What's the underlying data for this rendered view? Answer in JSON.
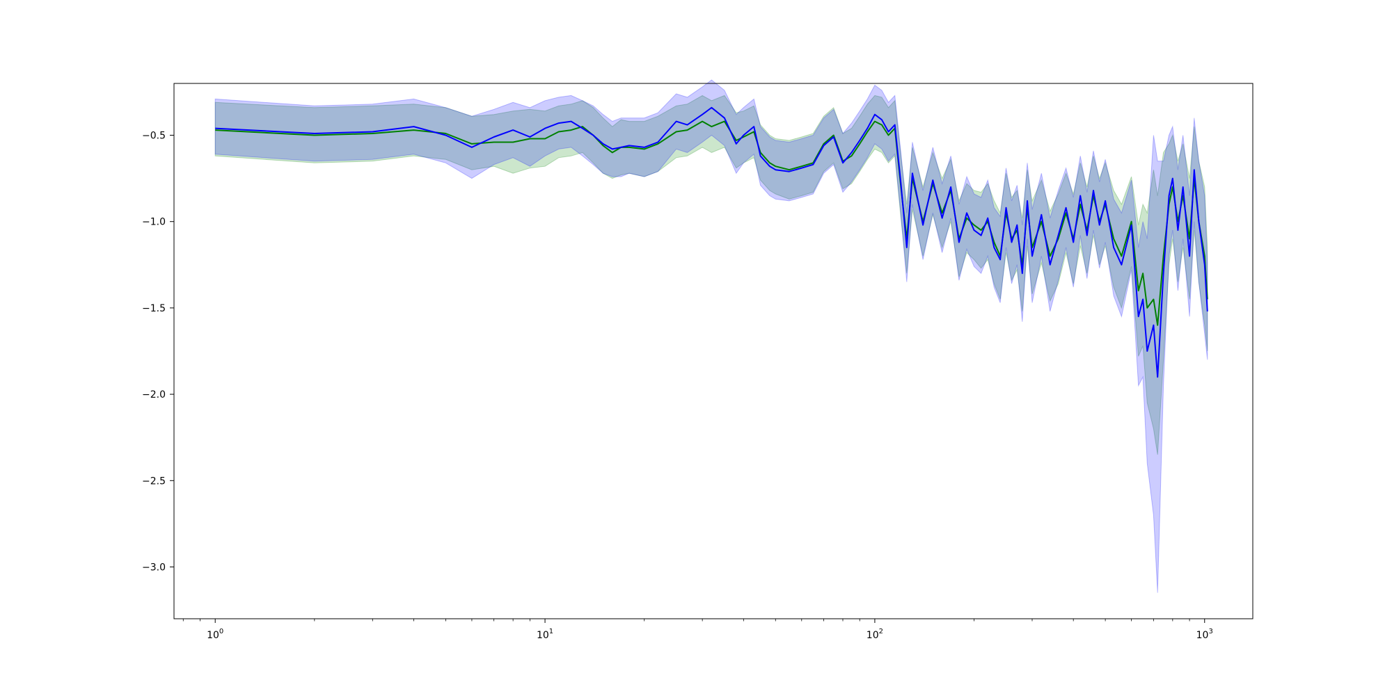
{
  "chart_data": {
    "type": "line",
    "title": "",
    "xlabel": "",
    "ylabel": "",
    "x_scale": "log",
    "xlim": [
      0.75,
      1400
    ],
    "ylim": [
      -3.3,
      -0.2
    ],
    "grid": false,
    "legend": "none",
    "x_ticks": [
      {
        "value": 1,
        "base": "10",
        "exp": "0"
      },
      {
        "value": 10,
        "base": "10",
        "exp": "1"
      },
      {
        "value": 100,
        "base": "10",
        "exp": "2"
      },
      {
        "value": 1000,
        "base": "10",
        "exp": "3"
      }
    ],
    "y_ticks": [
      {
        "value": -0.5,
        "label": "−0.5"
      },
      {
        "value": -1.0,
        "label": "−1.0"
      },
      {
        "value": -1.5,
        "label": "−1.5"
      },
      {
        "value": -2.0,
        "label": "−2.0"
      },
      {
        "value": -2.5,
        "label": "−2.5"
      },
      {
        "value": -3.0,
        "label": "−3.0"
      }
    ],
    "series": [
      {
        "color": "#008000",
        "band_color": "#008000",
        "x": [
          1,
          2,
          3,
          4,
          5,
          6,
          7,
          8,
          9,
          10,
          11,
          12,
          13,
          14,
          15,
          16,
          17,
          18,
          20,
          22,
          25,
          27,
          30,
          32,
          35,
          38,
          40,
          43,
          45,
          48,
          50,
          55,
          60,
          65,
          70,
          75,
          80,
          85,
          90,
          95,
          100,
          105,
          110,
          115,
          120,
          125,
          130,
          140,
          150,
          160,
          170,
          180,
          190,
          200,
          210,
          220,
          230,
          240,
          250,
          260,
          270,
          280,
          290,
          300,
          320,
          340,
          360,
          380,
          400,
          420,
          440,
          460,
          480,
          500,
          530,
          560,
          600,
          630,
          650,
          670,
          700,
          720,
          750,
          780,
          800,
          830,
          860,
          900,
          930,
          960,
          1000,
          1020
        ],
        "y": [
          -0.47,
          -0.5,
          -0.49,
          -0.47,
          -0.49,
          -0.55,
          -0.54,
          -0.54,
          -0.52,
          -0.52,
          -0.48,
          -0.47,
          -0.45,
          -0.5,
          -0.56,
          -0.6,
          -0.57,
          -0.57,
          -0.58,
          -0.55,
          -0.48,
          -0.47,
          -0.42,
          -0.45,
          -0.42,
          -0.53,
          -0.51,
          -0.48,
          -0.6,
          -0.66,
          -0.68,
          -0.7,
          -0.68,
          -0.66,
          -0.55,
          -0.5,
          -0.65,
          -0.62,
          -0.55,
          -0.48,
          -0.42,
          -0.44,
          -0.5,
          -0.46,
          -0.8,
          -1.1,
          -0.75,
          -1.0,
          -0.78,
          -0.95,
          -0.82,
          -1.1,
          -0.98,
          -1.02,
          -1.05,
          -1.0,
          -1.12,
          -1.2,
          -0.95,
          -1.1,
          -1.05,
          -1.25,
          -0.92,
          -1.15,
          -1.0,
          -1.2,
          -1.1,
          -0.95,
          -1.1,
          -0.9,
          -1.05,
          -0.85,
          -1.0,
          -0.9,
          -1.1,
          -1.2,
          -1.0,
          -1.4,
          -1.3,
          -1.5,
          -1.45,
          -1.6,
          -1.2,
          -0.9,
          -0.8,
          -1.0,
          -0.85,
          -1.1,
          -0.75,
          -1.0,
          -1.2,
          -1.45
        ],
        "lower": [
          -0.62,
          -0.66,
          -0.65,
          -0.62,
          -0.64,
          -0.7,
          -0.68,
          -0.72,
          -0.69,
          -0.68,
          -0.63,
          -0.62,
          -0.6,
          -0.66,
          -0.72,
          -0.75,
          -0.73,
          -0.72,
          -0.74,
          -0.71,
          -0.63,
          -0.62,
          -0.57,
          -0.6,
          -0.57,
          -0.69,
          -0.66,
          -0.63,
          -0.76,
          -0.82,
          -0.84,
          -0.87,
          -0.85,
          -0.83,
          -0.71,
          -0.66,
          -0.81,
          -0.78,
          -0.71,
          -0.64,
          -0.58,
          -0.6,
          -0.66,
          -0.62,
          -0.98,
          -1.3,
          -0.93,
          -1.2,
          -0.96,
          -1.15,
          -1.0,
          -1.32,
          -1.18,
          -1.22,
          -1.27,
          -1.22,
          -1.36,
          -1.45,
          -1.18,
          -1.34,
          -1.28,
          -1.52,
          -1.14,
          -1.42,
          -1.24,
          -1.46,
          -1.36,
          -1.18,
          -1.36,
          -1.14,
          -1.3,
          -1.08,
          -1.25,
          -1.14,
          -1.38,
          -1.5,
          -1.26,
          -1.78,
          -1.72,
          -2.05,
          -2.2,
          -2.35,
          -1.8,
          -1.25,
          -1.1,
          -1.35,
          -1.15,
          -1.45,
          -1.05,
          -1.35,
          -1.6,
          -1.75
        ],
        "upper": [
          -0.31,
          -0.34,
          -0.33,
          -0.32,
          -0.34,
          -0.39,
          -0.38,
          -0.36,
          -0.35,
          -0.36,
          -0.33,
          -0.32,
          -0.3,
          -0.34,
          -0.4,
          -0.45,
          -0.41,
          -0.42,
          -0.42,
          -0.39,
          -0.33,
          -0.32,
          -0.27,
          -0.3,
          -0.27,
          -0.37,
          -0.36,
          -0.33,
          -0.44,
          -0.5,
          -0.52,
          -0.53,
          -0.51,
          -0.49,
          -0.39,
          -0.34,
          -0.49,
          -0.46,
          -0.39,
          -0.32,
          -0.27,
          -0.28,
          -0.34,
          -0.3,
          -0.62,
          -0.9,
          -0.57,
          -0.8,
          -0.6,
          -0.75,
          -0.64,
          -0.88,
          -0.78,
          -0.82,
          -0.83,
          -0.78,
          -0.88,
          -0.95,
          -0.72,
          -0.86,
          -0.82,
          -0.98,
          -0.7,
          -0.88,
          -0.76,
          -0.94,
          -0.84,
          -0.72,
          -0.84,
          -0.66,
          -0.8,
          -0.62,
          -0.75,
          -0.66,
          -0.82,
          -0.9,
          -0.74,
          -1.02,
          -0.9,
          -0.95,
          -0.7,
          -0.85,
          -0.6,
          -0.55,
          -0.5,
          -0.65,
          -0.55,
          -0.75,
          -0.45,
          -0.65,
          -0.8,
          -1.15
        ]
      },
      {
        "color": "#0000ff",
        "band_color": "#0000ff",
        "x": [
          1,
          2,
          3,
          4,
          5,
          6,
          7,
          8,
          9,
          10,
          11,
          12,
          13,
          14,
          15,
          16,
          17,
          18,
          20,
          22,
          25,
          27,
          30,
          32,
          35,
          38,
          40,
          43,
          45,
          48,
          50,
          55,
          60,
          65,
          70,
          75,
          80,
          85,
          90,
          95,
          100,
          105,
          110,
          115,
          120,
          125,
          130,
          140,
          150,
          160,
          170,
          180,
          190,
          200,
          210,
          220,
          230,
          240,
          250,
          260,
          270,
          280,
          290,
          300,
          320,
          340,
          360,
          380,
          400,
          420,
          440,
          460,
          480,
          500,
          530,
          560,
          600,
          630,
          650,
          670,
          700,
          720,
          750,
          780,
          800,
          830,
          860,
          900,
          930,
          960,
          1000,
          1020
        ],
        "y": [
          -0.46,
          -0.49,
          -0.48,
          -0.45,
          -0.5,
          -0.57,
          -0.51,
          -0.47,
          -0.51,
          -0.46,
          -0.43,
          -0.42,
          -0.46,
          -0.5,
          -0.55,
          -0.58,
          -0.57,
          -0.56,
          -0.57,
          -0.54,
          -0.42,
          -0.44,
          -0.38,
          -0.34,
          -0.4,
          -0.55,
          -0.5,
          -0.45,
          -0.62,
          -0.68,
          -0.7,
          -0.71,
          -0.69,
          -0.67,
          -0.56,
          -0.51,
          -0.66,
          -0.6,
          -0.53,
          -0.46,
          -0.38,
          -0.41,
          -0.48,
          -0.44,
          -0.78,
          -1.15,
          -0.72,
          -1.02,
          -0.76,
          -0.98,
          -0.8,
          -1.12,
          -0.95,
          -1.05,
          -1.08,
          -0.98,
          -1.15,
          -1.22,
          -0.92,
          -1.12,
          -1.02,
          -1.3,
          -0.88,
          -1.2,
          -0.96,
          -1.25,
          -1.08,
          -0.92,
          -1.12,
          -0.85,
          -1.08,
          -0.82,
          -1.02,
          -0.88,
          -1.15,
          -1.25,
          -1.02,
          -1.55,
          -1.45,
          -1.75,
          -1.6,
          -1.9,
          -1.3,
          -0.85,
          -0.75,
          -1.05,
          -0.8,
          -1.2,
          -0.7,
          -1.0,
          -1.25,
          -1.52
        ],
        "lower": [
          -0.61,
          -0.65,
          -0.64,
          -0.61,
          -0.66,
          -0.75,
          -0.67,
          -0.63,
          -0.68,
          -0.62,
          -0.58,
          -0.57,
          -0.62,
          -0.67,
          -0.72,
          -0.74,
          -0.74,
          -0.72,
          -0.74,
          -0.71,
          -0.58,
          -0.6,
          -0.54,
          -0.5,
          -0.56,
          -0.72,
          -0.66,
          -0.61,
          -0.79,
          -0.85,
          -0.87,
          -0.88,
          -0.86,
          -0.84,
          -0.72,
          -0.67,
          -0.83,
          -0.77,
          -0.7,
          -0.63,
          -0.55,
          -0.58,
          -0.65,
          -0.61,
          -0.96,
          -1.35,
          -0.9,
          -1.22,
          -0.95,
          -1.18,
          -0.98,
          -1.34,
          -1.16,
          -1.26,
          -1.3,
          -1.2,
          -1.38,
          -1.47,
          -1.15,
          -1.36,
          -1.25,
          -1.58,
          -1.1,
          -1.47,
          -1.2,
          -1.52,
          -1.34,
          -1.15,
          -1.38,
          -1.08,
          -1.33,
          -1.05,
          -1.27,
          -1.12,
          -1.43,
          -1.55,
          -1.28,
          -1.95,
          -1.9,
          -2.4,
          -2.7,
          -3.15,
          -1.95,
          -1.2,
          -1.05,
          -1.4,
          -1.1,
          -1.55,
          -1.0,
          -1.35,
          -1.65,
          -1.8
        ],
        "upper": [
          -0.29,
          -0.33,
          -0.32,
          -0.29,
          -0.34,
          -0.39,
          -0.35,
          -0.31,
          -0.34,
          -0.3,
          -0.28,
          -0.27,
          -0.3,
          -0.33,
          -0.38,
          -0.42,
          -0.4,
          -0.4,
          -0.4,
          -0.37,
          -0.26,
          -0.28,
          -0.22,
          -0.18,
          -0.24,
          -0.38,
          -0.34,
          -0.29,
          -0.45,
          -0.51,
          -0.53,
          -0.54,
          -0.52,
          -0.5,
          -0.4,
          -0.35,
          -0.49,
          -0.43,
          -0.36,
          -0.29,
          -0.21,
          -0.24,
          -0.31,
          -0.27,
          -0.6,
          -0.95,
          -0.54,
          -0.82,
          -0.57,
          -0.78,
          -0.62,
          -0.9,
          -0.74,
          -0.84,
          -0.86,
          -0.76,
          -0.92,
          -0.97,
          -0.69,
          -0.88,
          -0.79,
          -1.02,
          -0.66,
          -0.93,
          -0.72,
          -0.98,
          -0.82,
          -0.69,
          -0.86,
          -0.62,
          -0.83,
          -0.59,
          -0.77,
          -0.64,
          -0.87,
          -0.95,
          -0.76,
          -1.15,
          -1.0,
          -1.1,
          -0.5,
          -0.65,
          -0.65,
          -0.5,
          -0.45,
          -0.7,
          -0.5,
          -0.85,
          -0.4,
          -0.65,
          -0.85,
          -1.24
        ]
      }
    ]
  }
}
